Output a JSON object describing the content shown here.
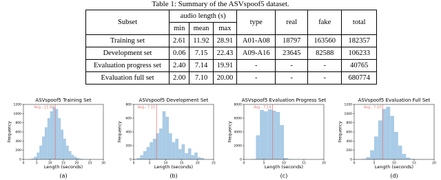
{
  "table": {
    "caption": "Table 1: Summary of the ASVspoof5 dataset.",
    "header": [
      "Subset",
      "audio length (s)",
      "type",
      "real",
      "fake",
      "total"
    ],
    "subheader": [
      "min",
      "mean",
      "max"
    ],
    "rows": [
      [
        "Training set",
        "2.61",
        "11.92",
        "28.91",
        "A01-A08",
        "18797",
        "163560",
        "182357"
      ],
      [
        "Development set",
        "0.06",
        "7.15",
        "22.43",
        "A09-A16",
        "23645",
        "82588",
        "106233"
      ],
      [
        "Evaluation progress set",
        "2.40",
        "7.14",
        "19.91",
        "-",
        "-",
        "-",
        "40765"
      ],
      [
        "Evaluation full set",
        "2.00",
        "7.10",
        "20.00",
        "-",
        "-",
        "-",
        "680774"
      ]
    ]
  },
  "chart_data": [
    {
      "type": "histogram",
      "title": "ASVspoof5 Training Set",
      "xlabel": "Length (seconds)",
      "ylabel": "Frequency",
      "caption": "(a)",
      "color": "#a9cbe6",
      "avg": 11.92,
      "avg_label": "Avg.: 11.92",
      "avg_color": "#e07070",
      "bins": [
        0,
        1,
        2,
        3,
        4,
        5,
        6,
        7,
        8,
        9,
        10,
        11,
        12,
        13,
        14,
        15,
        16,
        17,
        18,
        19,
        20,
        21,
        22,
        23,
        24,
        25,
        26,
        27,
        28,
        29,
        30
      ],
      "counts": [
        0,
        0,
        5,
        20,
        60,
        150,
        300,
        500,
        700,
        900,
        1050,
        1150,
        1100,
        900,
        650,
        450,
        300,
        180,
        100,
        60,
        30,
        15,
        8,
        4,
        2,
        1,
        0,
        0,
        0,
        0
      ],
      "xlim": [
        0,
        30
      ],
      "xticks": [
        0,
        5,
        10,
        15,
        20,
        25,
        30
      ],
      "ylim": [
        0,
        1200
      ],
      "yticks": [
        0,
        200,
        400,
        600,
        800,
        1000,
        1200
      ]
    },
    {
      "type": "histogram",
      "title": "ASVspoof5 Development Set",
      "xlabel": "Length (seconds)",
      "ylabel": "Frequency",
      "caption": "(b)",
      "color": "#a9cbe6",
      "avg": 7.15,
      "avg_label": "Avg.: 7.15",
      "avg_color": "#e07070",
      "bins": [
        0,
        1,
        2,
        3,
        4,
        5,
        6,
        7,
        8,
        9,
        10,
        11,
        12,
        13,
        14,
        15,
        16,
        17,
        18,
        19,
        20,
        21,
        22
      ],
      "counts": [
        5,
        20,
        60,
        120,
        180,
        250,
        300,
        380,
        450,
        700,
        620,
        380,
        250,
        300,
        150,
        220,
        90,
        160,
        60,
        100,
        30,
        20
      ],
      "xlim": [
        0,
        25
      ],
      "xticks": [
        0,
        5,
        10,
        15,
        20,
        25
      ],
      "ylim": [
        0,
        800
      ],
      "yticks": [
        0,
        200,
        400,
        600,
        800
      ]
    },
    {
      "type": "histogram",
      "title": "ASVspoof5 Evaluation Progress Set",
      "xlabel": "Length (seconds)",
      "ylabel": "Frequency",
      "caption": "(c)",
      "color": "#a9cbe6",
      "avg": 7.14,
      "avg_label": "Avg.: 7.14",
      "avg_color": "#e07070",
      "bins": [
        0,
        1,
        2,
        3,
        4,
        5,
        6,
        7,
        8,
        9,
        10,
        11,
        12,
        13,
        14,
        15,
        16,
        17,
        18,
        19,
        20
      ],
      "counts": [
        0,
        0,
        50,
        3500,
        7200,
        7000,
        7300,
        7100,
        6900,
        5000,
        200,
        50,
        20,
        10,
        5,
        0,
        0,
        0,
        0,
        0
      ],
      "xlim": [
        0,
        20
      ],
      "xticks": [
        0,
        5,
        10,
        15,
        20
      ],
      "ylim": [
        0,
        8000
      ],
      "yticks": [
        0,
        2000,
        4000,
        6000,
        8000
      ]
    },
    {
      "type": "histogram",
      "title": "ASVspoof5 Evaluation Full Set",
      "xlabel": "Length (seconds)",
      "ylabel": "Frequency",
      "caption": "(d)",
      "color": "#a9cbe6",
      "avg": 7.1,
      "avg_label": "Avg.: 7.10",
      "avg_color": "#e07070",
      "bins": [
        0,
        1,
        2,
        3,
        4,
        5,
        6,
        7,
        8,
        9,
        10,
        11,
        12,
        13,
        14,
        15,
        16,
        17,
        18,
        19,
        20
      ],
      "counts": [
        0,
        0,
        10,
        50,
        200,
        500,
        850,
        1100,
        1150,
        950,
        600,
        300,
        120,
        40,
        10,
        3,
        0,
        0,
        0,
        0
      ],
      "xlim": [
        0,
        20
      ],
      "xticks": [
        0,
        5,
        10,
        15,
        20
      ],
      "ylim": [
        0,
        1200
      ],
      "yticks": [
        0,
        200,
        400,
        600,
        800,
        1000,
        1200
      ]
    }
  ]
}
